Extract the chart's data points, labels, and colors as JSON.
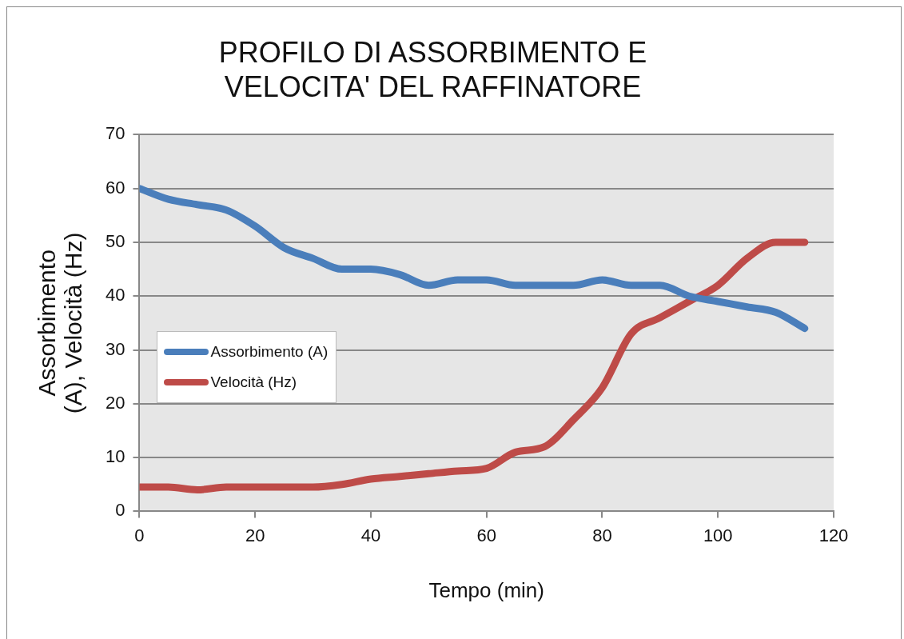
{
  "chart_data": {
    "type": "line",
    "title": "PROFILO DI ASSORBIMENTO E VELOCITA' DEL RAFFINATORE",
    "xlabel": "Tempo (min)",
    "ylabel": "Assorbimento (A), Velocità (Hz)",
    "x": [
      0,
      5,
      10,
      15,
      20,
      25,
      30,
      35,
      40,
      45,
      50,
      55,
      60,
      65,
      70,
      75,
      80,
      85,
      90,
      95,
      100,
      105,
      110,
      115
    ],
    "series": [
      {
        "name": "Assorbimento (A)",
        "color": "#4a7ebb",
        "values": [
          60,
          58,
          57,
          56,
          53,
          49,
          47,
          45,
          45,
          44,
          42,
          43,
          43,
          42,
          42,
          42,
          43,
          42,
          42,
          40,
          39,
          38,
          37,
          34
        ]
      },
      {
        "name": "Velocità (Hz)",
        "color": "#be4b48",
        "values": [
          4.5,
          4.5,
          4,
          4.5,
          4.5,
          4.5,
          4.5,
          5,
          6,
          6.5,
          7,
          7.5,
          8,
          11,
          12,
          17,
          23,
          33,
          36,
          39,
          42,
          47,
          50,
          50
        ]
      }
    ],
    "xlim": [
      0,
      120
    ],
    "xticks": [
      0,
      20,
      40,
      60,
      80,
      100,
      120
    ],
    "ylim": [
      0,
      70
    ],
    "yticks": [
      0,
      10,
      20,
      30,
      40,
      50,
      60,
      70
    ],
    "grid": "y",
    "legend": "left",
    "marker": "none",
    "line_style": "solid"
  }
}
